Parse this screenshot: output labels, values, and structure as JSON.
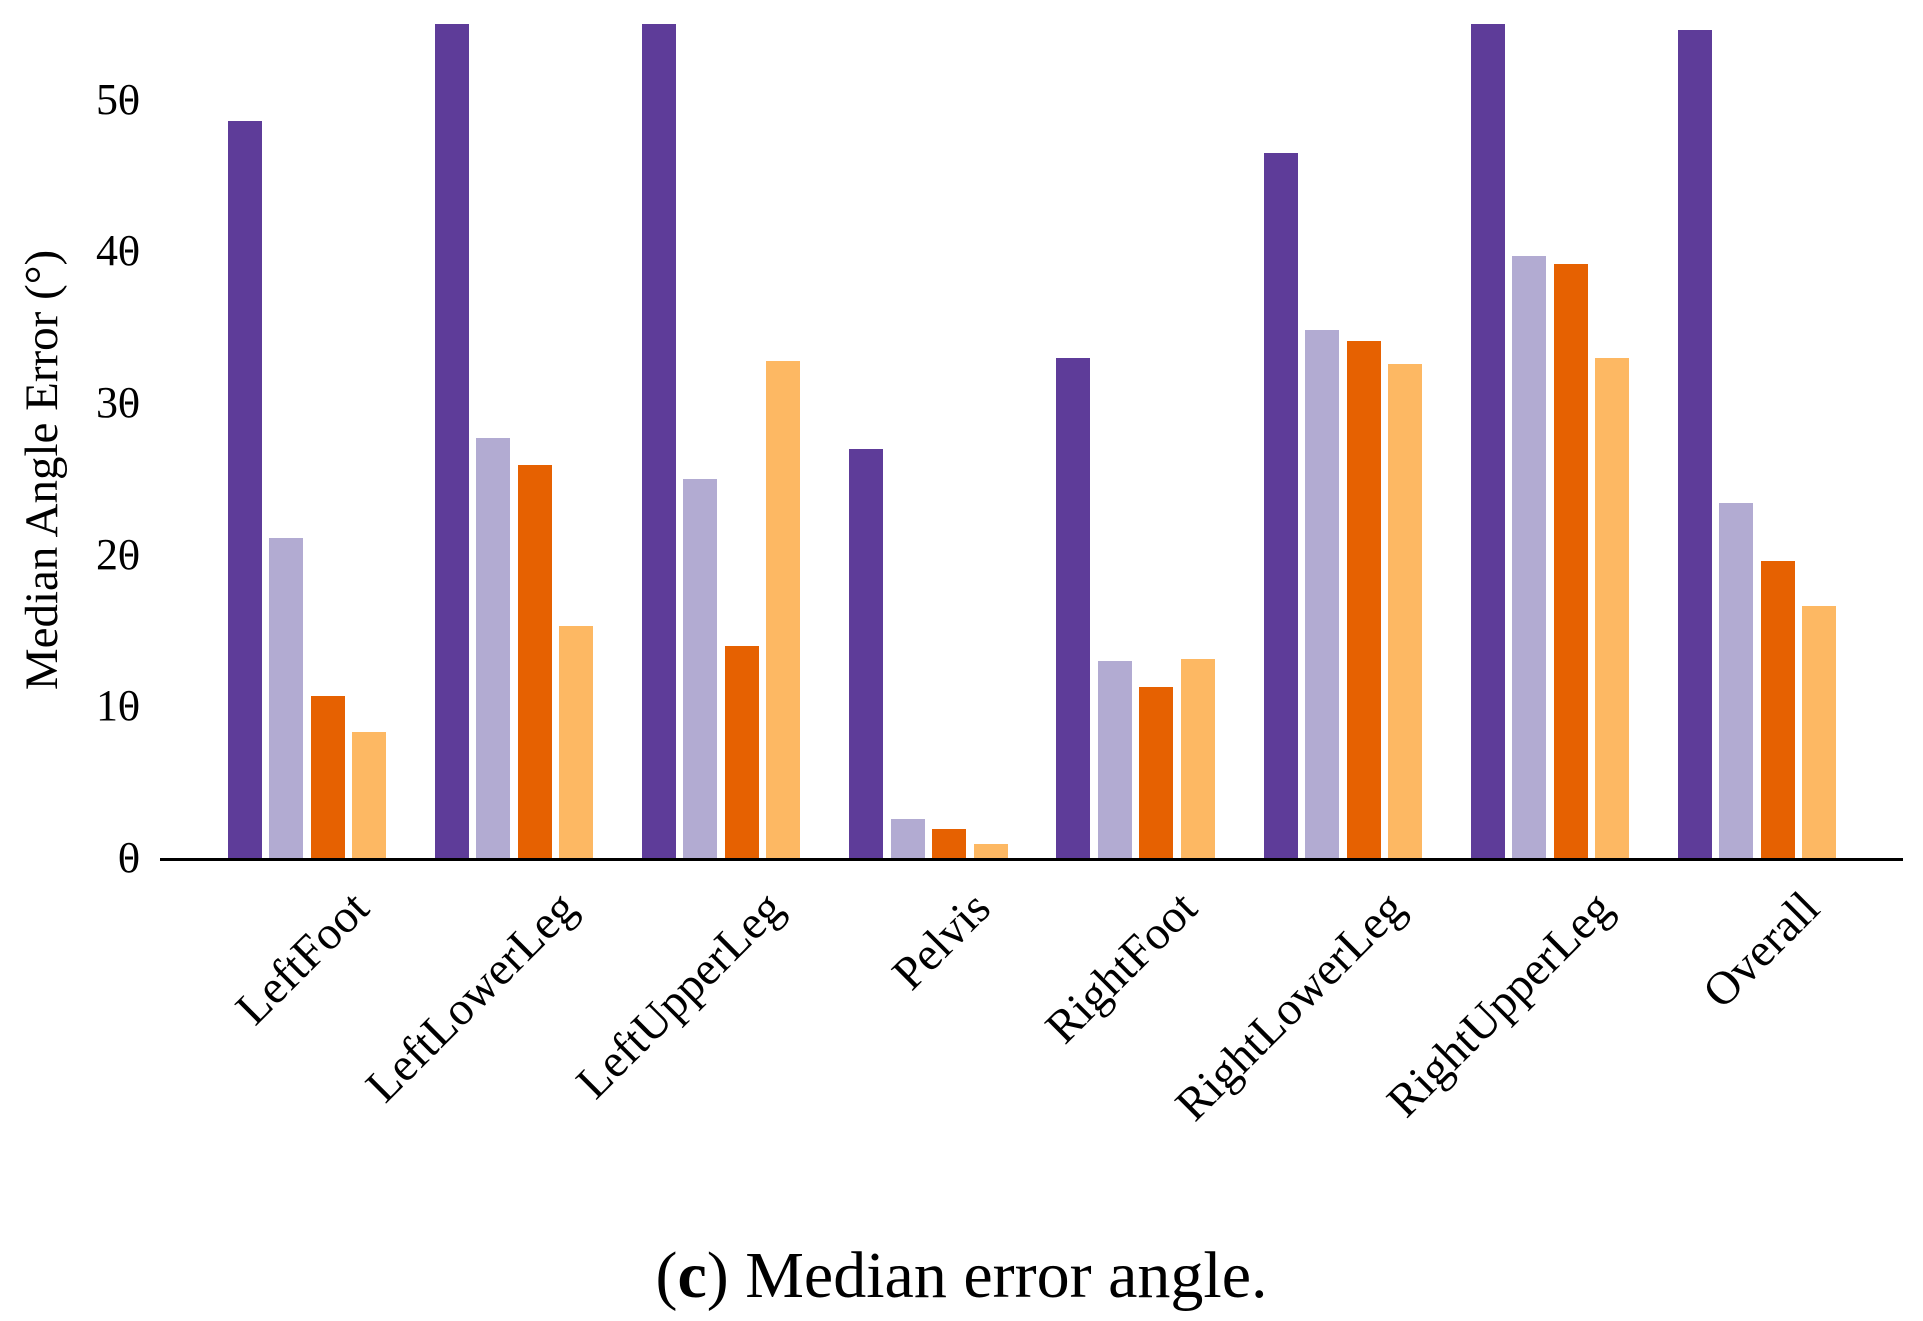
{
  "figure": {
    "background": "#ffffff",
    "caption": {
      "open": "(",
      "letter": "c",
      "rest": ") Median error angle."
    }
  },
  "chart_data": {
    "type": "bar",
    "title": "",
    "xlabel": "",
    "ylabel": "Median Angle Error (°)",
    "categories": [
      "LeftFoot",
      "LeftLowerLeg",
      "LeftUpperLeg",
      "Pelvis",
      "RightFoot",
      "RightLowerLeg",
      "RightUpperLeg",
      "Overall"
    ],
    "series": [
      {
        "name": "dark-purple",
        "color": "#5e3c99",
        "values": [
          48.6,
          55.0,
          55.0,
          27.0,
          33.0,
          46.5,
          55.0,
          54.6
        ]
      },
      {
        "name": "light-purple",
        "color": "#b2abd2",
        "values": [
          21.1,
          27.7,
          25.0,
          2.6,
          13.0,
          34.8,
          39.7,
          23.4
        ]
      },
      {
        "name": "dark-orange",
        "color": "#e66101",
        "values": [
          10.7,
          25.9,
          14.0,
          1.9,
          11.3,
          34.1,
          39.2,
          19.6
        ]
      },
      {
        "name": "light-orange",
        "color": "#fdb863",
        "values": [
          8.3,
          15.3,
          32.8,
          0.9,
          13.1,
          32.6,
          33.0,
          16.6
        ]
      }
    ],
    "ylim": [
      0,
      55
    ],
    "yticks": [
      0,
      10,
      20,
      30,
      40,
      50
    ],
    "grid": false,
    "legend": "none",
    "bars_clipped_at_axes_top": [
      "LeftLowerLeg:dark-purple",
      "LeftUpperLeg:dark-purple",
      "RightUpperLeg:dark-purple"
    ]
  }
}
